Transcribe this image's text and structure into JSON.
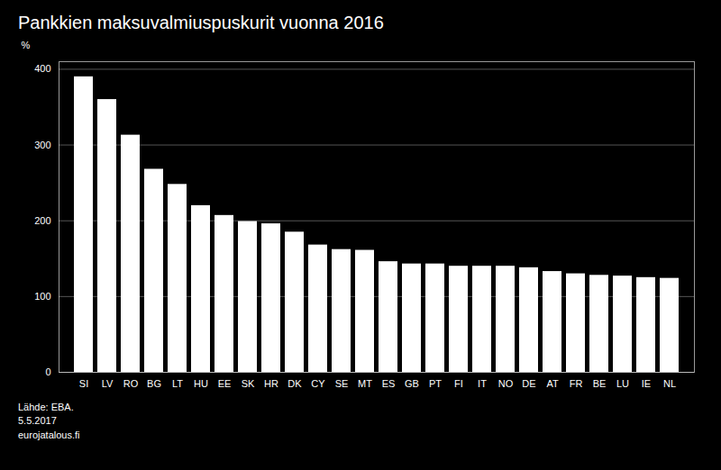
{
  "chart_data": {
    "type": "bar",
    "title": "Pankkien maksuvalmiuspuskurit vuonna 2016",
    "ylabel": "%",
    "source": "Lähde: EBA.\n5.5.2017\neurojatalous.fi",
    "categories": [
      "SI",
      "LV",
      "RO",
      "BG",
      "LT",
      "HU",
      "EE",
      "SK",
      "HR",
      "DK",
      "CY",
      "SE",
      "MT",
      "ES",
      "GB",
      "PT",
      "FI",
      "IT",
      "NO",
      "DE",
      "AT",
      "FR",
      "BE",
      "LU",
      "IE",
      "NL"
    ],
    "values": [
      390,
      360,
      313,
      268,
      248,
      220,
      207,
      199,
      196,
      185,
      168,
      162,
      161,
      146,
      143,
      143,
      140,
      140,
      140,
      138,
      133,
      130,
      128,
      127,
      125,
      124
    ],
    "color": "#ffffff",
    "ylim": [
      0,
      410
    ],
    "yticks": [
      0,
      100,
      200,
      300,
      400
    ],
    "grid": true
  }
}
